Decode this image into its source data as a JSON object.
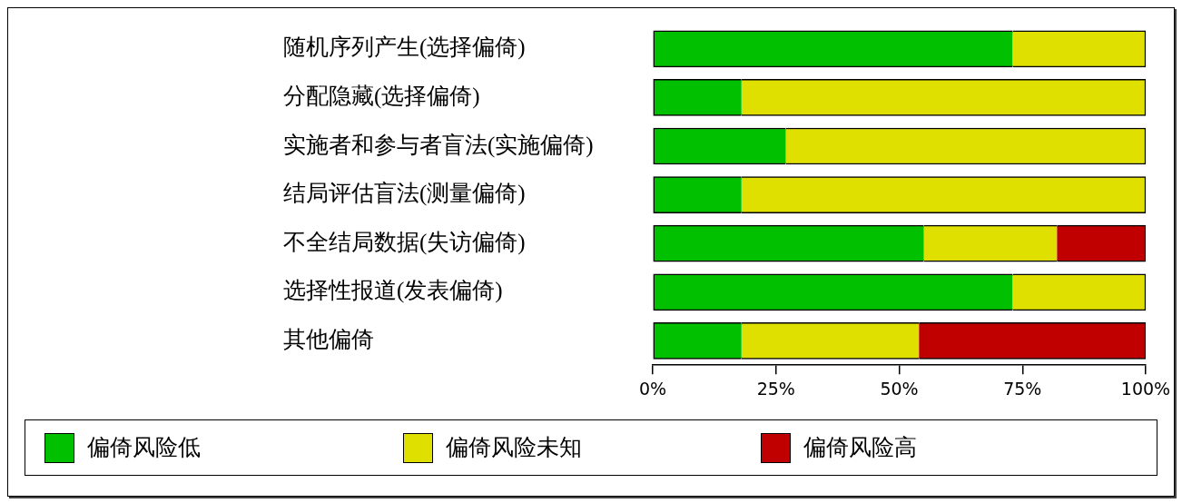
{
  "chart_data": {
    "type": "bar",
    "orientation": "horizontal",
    "stacked": true,
    "categories": [
      "随机序列产生(选择偏倚)",
      "分配隐藏(选择偏倚)",
      "实施者和参与者盲法(实施偏倚)",
      "结局评估盲法(测量偏倚)",
      "不全结局数据(失访偏倚)",
      "选择性报道(发表偏倚)",
      "其他偏倚"
    ],
    "series": [
      {
        "name": "偏倚风险低",
        "color": "#00c000",
        "values": [
          73,
          18,
          27,
          18,
          55,
          73,
          18
        ]
      },
      {
        "name": "偏倚风险未知",
        "color": "#e0e000",
        "values": [
          27,
          82,
          73,
          82,
          27,
          27,
          36
        ]
      },
      {
        "name": "偏倚风险高",
        "color": "#c00000",
        "values": [
          0,
          0,
          0,
          0,
          18,
          0,
          46
        ]
      }
    ],
    "xlim": [
      0,
      100
    ],
    "xticks": [
      {
        "value": 0,
        "label": "0%"
      },
      {
        "value": 25,
        "label": "25%"
      },
      {
        "value": 50,
        "label": "50%"
      },
      {
        "value": 75,
        "label": "75%"
      },
      {
        "value": 100,
        "label": "100%"
      }
    ],
    "legend": "bottom"
  }
}
